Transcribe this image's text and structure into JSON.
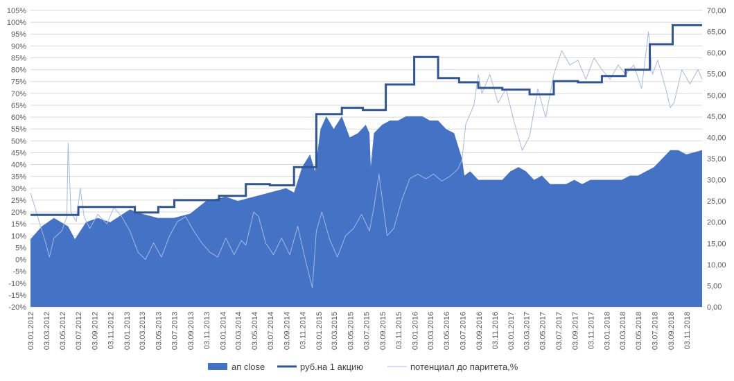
{
  "chart_data": {
    "type": "area+line",
    "title": "",
    "grid": true,
    "legend": "bottom",
    "left_axis": {
      "min": -20,
      "max": 105,
      "step": 5,
      "tick_labels": [
        "-20%",
        "-15%",
        "-10%",
        "-5%",
        "0%",
        "5%",
        "10%",
        "15%",
        "20%",
        "25%",
        "30%",
        "35%",
        "40%",
        "45%",
        "50%",
        "55%",
        "60%",
        "65%",
        "70%",
        "75%",
        "80%",
        "85%",
        "90%",
        "95%",
        "100%",
        "105%"
      ]
    },
    "right_axis": {
      "min": 0,
      "max": 70,
      "step": 5,
      "tick_labels": [
        "0,00",
        "5,00",
        "10,00",
        "15,00",
        "20,00",
        "25,00",
        "30,00",
        "35,00",
        "40,00",
        "45,00",
        "50,00",
        "55,00",
        "60,00",
        "65,00",
        "70,00"
      ]
    },
    "x_axis": {
      "start": "2012-01-03",
      "end": "2018-12-31",
      "tick_labels": [
        "03.01.2012",
        "03.03.2012",
        "03.05.2012",
        "03.07.2012",
        "03.09.2012",
        "03.11.2012",
        "03.01.2013",
        "03.03.2013",
        "03.05.2013",
        "03.07.2013",
        "03.09.2013",
        "03.11.2013",
        "03.01.2014",
        "03.03.2014",
        "03.05.2014",
        "03.07.2014",
        "03.09.2014",
        "03.11.2014",
        "03.01.2015",
        "03.03.2015",
        "03.05.2015",
        "03.07.2015",
        "03.09.2015",
        "03.11.2015",
        "03.01.2016",
        "03.03.2016",
        "03.05.2016",
        "03.07.2016",
        "03.09.2016",
        "03.11.2016",
        "03.01.2017",
        "03.03.2017",
        "03.05.2017",
        "03.07.2017",
        "03.09.2017",
        "03.11.2017",
        "03.01.2018",
        "03.03.2018",
        "03.05.2018",
        "03.07.2018",
        "03.09.2018",
        "03.11.2018"
      ]
    },
    "series": [
      {
        "name": "ап close",
        "kind": "area",
        "axis": "right",
        "color": "#4472C4",
        "points": [
          [
            "2012-01-03",
            16
          ],
          [
            "2012-02-15",
            19
          ],
          [
            "2012-04-01",
            21
          ],
          [
            "2012-05-25",
            19
          ],
          [
            "2012-06-20",
            16
          ],
          [
            "2012-08-01",
            20
          ],
          [
            "2012-09-15",
            21
          ],
          [
            "2012-11-01",
            20
          ],
          [
            "2013-01-15",
            23
          ],
          [
            "2013-03-01",
            22
          ],
          [
            "2013-05-01",
            21
          ],
          [
            "2013-07-01",
            21
          ],
          [
            "2013-09-01",
            22
          ],
          [
            "2013-11-01",
            25
          ],
          [
            "2014-01-15",
            26
          ],
          [
            "2014-03-01",
            25
          ],
          [
            "2014-05-01",
            26
          ],
          [
            "2014-07-01",
            27
          ],
          [
            "2014-09-01",
            28
          ],
          [
            "2014-10-01",
            27
          ],
          [
            "2014-11-01",
            33
          ],
          [
            "2014-12-01",
            36
          ],
          [
            "2014-12-20",
            32
          ],
          [
            "2015-01-10",
            42
          ],
          [
            "2015-02-01",
            45
          ],
          [
            "2015-03-01",
            42
          ],
          [
            "2015-04-01",
            45
          ],
          [
            "2015-05-01",
            40
          ],
          [
            "2015-06-01",
            41
          ],
          [
            "2015-07-01",
            43
          ],
          [
            "2015-07-15",
            41
          ],
          [
            "2015-07-20",
            33
          ],
          [
            "2015-08-01",
            41
          ],
          [
            "2015-09-01",
            43
          ],
          [
            "2015-10-01",
            44
          ],
          [
            "2015-11-01",
            44
          ],
          [
            "2015-12-01",
            45
          ],
          [
            "2016-01-01",
            45
          ],
          [
            "2016-02-01",
            45
          ],
          [
            "2016-03-01",
            44
          ],
          [
            "2016-04-01",
            44
          ],
          [
            "2016-05-01",
            42
          ],
          [
            "2016-06-01",
            41
          ],
          [
            "2016-07-01",
            35
          ],
          [
            "2016-07-10",
            31
          ],
          [
            "2016-08-01",
            32
          ],
          [
            "2016-09-01",
            30
          ],
          [
            "2016-10-01",
            30
          ],
          [
            "2016-11-01",
            30
          ],
          [
            "2016-12-01",
            30
          ],
          [
            "2017-01-01",
            32
          ],
          [
            "2017-02-01",
            33
          ],
          [
            "2017-03-01",
            32
          ],
          [
            "2017-04-01",
            30
          ],
          [
            "2017-05-01",
            31
          ],
          [
            "2017-06-01",
            29
          ],
          [
            "2017-07-01",
            29
          ],
          [
            "2017-08-01",
            29
          ],
          [
            "2017-09-01",
            30
          ],
          [
            "2017-10-01",
            29
          ],
          [
            "2017-11-01",
            30
          ],
          [
            "2017-12-01",
            30
          ],
          [
            "2018-01-01",
            30
          ],
          [
            "2018-02-01",
            30
          ],
          [
            "2018-03-01",
            30
          ],
          [
            "2018-04-01",
            31
          ],
          [
            "2018-05-01",
            31
          ],
          [
            "2018-06-01",
            32
          ],
          [
            "2018-07-01",
            33
          ],
          [
            "2018-08-01",
            35
          ],
          [
            "2018-09-01",
            37
          ],
          [
            "2018-10-01",
            37
          ],
          [
            "2018-11-01",
            36
          ],
          [
            "2018-12-31",
            37
          ]
        ]
      },
      {
        "name": "руб.на 1 акцию",
        "kind": "step",
        "axis": "right",
        "color": "#2F5597",
        "points": [
          [
            "2012-01-03",
            21.7
          ],
          [
            "2012-07-03",
            23.6
          ],
          [
            "2013-02-03",
            22.3
          ],
          [
            "2013-05-03",
            23.6
          ],
          [
            "2013-07-03",
            25.2
          ],
          [
            "2013-12-20",
            26.2
          ],
          [
            "2014-04-01",
            29.0
          ],
          [
            "2014-07-01",
            28.7
          ],
          [
            "2014-10-01",
            33.0
          ],
          [
            "2014-12-25",
            45.5
          ],
          [
            "2015-04-01",
            47.0
          ],
          [
            "2015-06-20",
            46.5
          ],
          [
            "2015-09-15",
            52.5
          ],
          [
            "2016-01-01",
            59.0
          ],
          [
            "2016-04-01",
            54.0
          ],
          [
            "2016-06-20",
            53.0
          ],
          [
            "2016-09-01",
            51.7
          ],
          [
            "2016-12-01",
            51.3
          ],
          [
            "2017-03-15",
            50.2
          ],
          [
            "2017-06-15",
            53.3
          ],
          [
            "2017-09-15",
            53.0
          ],
          [
            "2017-12-15",
            54.5
          ],
          [
            "2018-03-15",
            56.0
          ],
          [
            "2018-06-15",
            62.0
          ],
          [
            "2018-09-10",
            66.5
          ],
          [
            "2018-12-31",
            66.5
          ]
        ]
      },
      {
        "name": "потенциал до паритета,%",
        "kind": "line",
        "axis": "left",
        "color": "#A6B8DF",
        "points": [
          [
            "2012-01-03",
            28
          ],
          [
            "2012-01-20",
            22
          ],
          [
            "2012-02-10",
            14
          ],
          [
            "2012-03-01",
            7
          ],
          [
            "2012-03-15",
            1
          ],
          [
            "2012-04-01",
            9
          ],
          [
            "2012-05-01",
            12
          ],
          [
            "2012-05-20",
            18
          ],
          [
            "2012-05-25",
            49
          ],
          [
            "2012-06-05",
            20
          ],
          [
            "2012-06-25",
            16
          ],
          [
            "2012-07-10",
            30
          ],
          [
            "2012-07-25",
            18
          ],
          [
            "2012-08-15",
            13
          ],
          [
            "2012-09-15",
            19
          ],
          [
            "2012-10-20",
            15
          ],
          [
            "2012-11-15",
            22
          ],
          [
            "2012-12-15",
            18
          ],
          [
            "2013-01-15",
            12
          ],
          [
            "2013-02-15",
            3
          ],
          [
            "2013-03-15",
            0
          ],
          [
            "2013-04-15",
            7
          ],
          [
            "2013-05-15",
            1
          ],
          [
            "2013-06-15",
            10
          ],
          [
            "2013-07-15",
            16
          ],
          [
            "2013-08-15",
            18
          ],
          [
            "2013-09-15",
            12
          ],
          [
            "2013-10-15",
            7
          ],
          [
            "2013-11-15",
            3
          ],
          [
            "2013-12-15",
            1
          ],
          [
            "2014-01-15",
            9
          ],
          [
            "2014-02-15",
            2
          ],
          [
            "2014-03-15",
            8
          ],
          [
            "2014-04-01",
            6
          ],
          [
            "2014-05-01",
            20
          ],
          [
            "2014-05-20",
            18
          ],
          [
            "2014-06-15",
            7
          ],
          [
            "2014-07-15",
            2
          ],
          [
            "2014-08-15",
            9
          ],
          [
            "2014-09-15",
            2
          ],
          [
            "2014-10-15",
            14
          ],
          [
            "2014-11-15",
            -1
          ],
          [
            "2014-12-10",
            -12
          ],
          [
            "2014-12-25",
            12
          ],
          [
            "2015-01-15",
            20
          ],
          [
            "2015-02-15",
            8
          ],
          [
            "2015-03-15",
            1
          ],
          [
            "2015-04-15",
            10
          ],
          [
            "2015-05-15",
            13
          ],
          [
            "2015-06-15",
            19
          ],
          [
            "2015-07-15",
            12
          ],
          [
            "2015-08-01",
            22
          ],
          [
            "2015-08-20",
            36
          ],
          [
            "2015-09-20",
            10
          ],
          [
            "2015-10-15",
            13
          ],
          [
            "2015-11-15",
            25
          ],
          [
            "2015-12-15",
            34
          ],
          [
            "2016-01-15",
            36
          ],
          [
            "2016-02-15",
            34
          ],
          [
            "2016-03-15",
            36
          ],
          [
            "2016-04-15",
            33
          ],
          [
            "2016-05-15",
            35
          ],
          [
            "2016-06-15",
            38
          ],
          [
            "2016-07-01",
            42
          ],
          [
            "2016-07-15",
            57
          ],
          [
            "2016-08-15",
            65
          ],
          [
            "2016-09-01",
            78
          ],
          [
            "2016-09-15",
            70
          ],
          [
            "2016-10-15",
            78
          ],
          [
            "2016-11-15",
            66
          ],
          [
            "2016-12-15",
            72
          ],
          [
            "2017-01-15",
            58
          ],
          [
            "2017-02-15",
            46
          ],
          [
            "2017-03-15",
            52
          ],
          [
            "2017-04-15",
            72
          ],
          [
            "2017-05-15",
            60
          ],
          [
            "2017-06-15",
            78
          ],
          [
            "2017-07-15",
            88
          ],
          [
            "2017-08-15",
            82
          ],
          [
            "2017-09-15",
            84
          ],
          [
            "2017-10-15",
            76
          ],
          [
            "2017-11-15",
            85
          ],
          [
            "2017-12-15",
            80
          ],
          [
            "2018-01-15",
            76
          ],
          [
            "2018-02-15",
            82
          ],
          [
            "2018-03-15",
            78
          ],
          [
            "2018-04-15",
            82
          ],
          [
            "2018-05-15",
            72
          ],
          [
            "2018-06-10",
            96
          ],
          [
            "2018-06-25",
            78
          ],
          [
            "2018-07-15",
            84
          ],
          [
            "2018-08-15",
            72
          ],
          [
            "2018-09-01",
            64
          ],
          [
            "2018-09-15",
            66
          ],
          [
            "2018-10-15",
            80
          ],
          [
            "2018-11-15",
            74
          ],
          [
            "2018-12-15",
            80
          ],
          [
            "2018-12-31",
            76
          ]
        ]
      }
    ]
  }
}
